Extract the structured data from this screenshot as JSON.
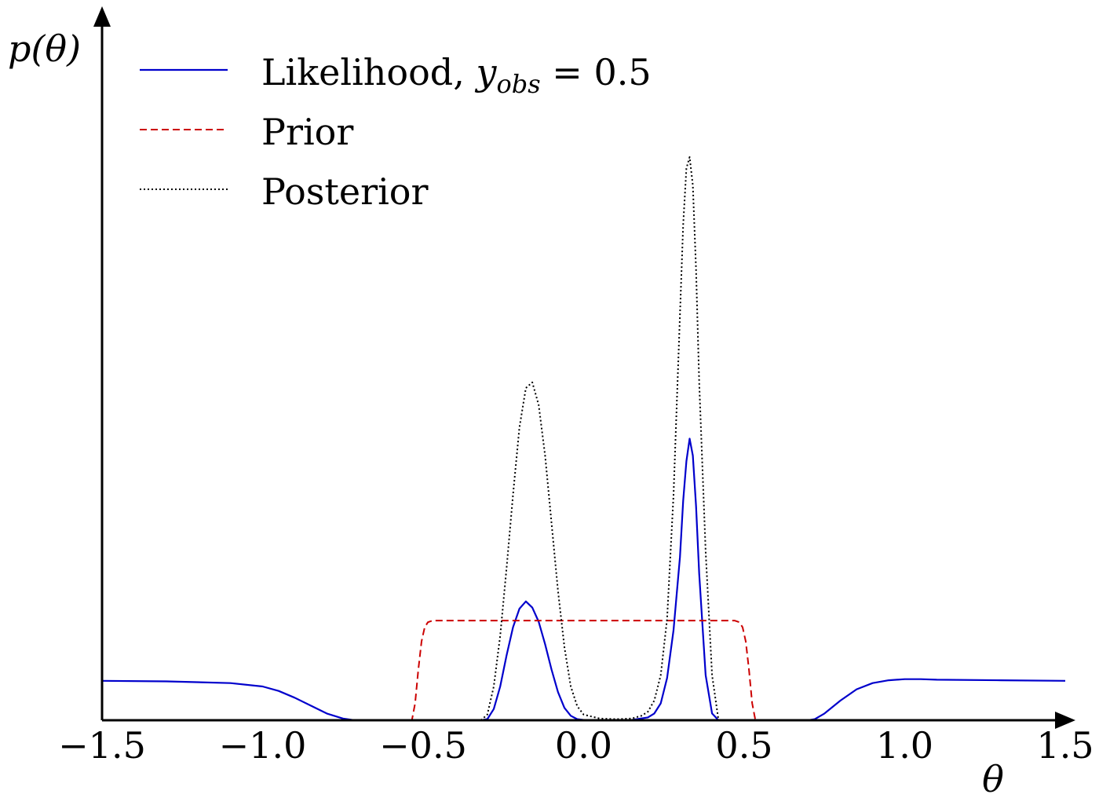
{
  "chart_data": {
    "type": "line",
    "title": "",
    "xlabel": "θ",
    "ylabel": "p(θ)",
    "xlim": [
      -1.5,
      1.5
    ],
    "ylim": [
      0,
      1.0
    ],
    "x_ticks": [
      "−1.5",
      "−1.0",
      "−0.5",
      "0.0",
      "0.5",
      "1.0",
      "1.5"
    ],
    "x_tick_values": [
      -1.5,
      -1.0,
      -0.5,
      0.0,
      0.5,
      1.0,
      1.5
    ],
    "grid": false,
    "legend_position": "top-left",
    "series": [
      {
        "name": "Likelihood, y_obs = 0.5",
        "label_main": "Likelihood, ",
        "label_var": "y",
        "label_sub": "obs",
        "label_rest": " = 0.5",
        "color": "#0000cc",
        "style": "solid",
        "x": [
          -1.5,
          -1.3,
          -1.1,
          -1.0,
          -0.95,
          -0.9,
          -0.85,
          -0.8,
          -0.75,
          -0.72,
          -0.7,
          -0.5,
          -0.32,
          -0.3,
          -0.28,
          -0.26,
          -0.24,
          -0.22,
          -0.2,
          -0.18,
          -0.16,
          -0.14,
          -0.12,
          -0.1,
          -0.08,
          -0.06,
          -0.04,
          -0.02,
          0.0,
          0.02,
          0.05,
          0.1,
          0.15,
          0.2,
          0.22,
          0.24,
          0.26,
          0.28,
          0.3,
          0.31,
          0.32,
          0.33,
          0.34,
          0.35,
          0.36,
          0.38,
          0.4,
          0.42,
          0.5,
          0.7,
          0.72,
          0.75,
          0.8,
          0.85,
          0.9,
          0.95,
          1.0,
          1.05,
          1.1,
          1.3,
          1.5
        ],
        "y": [
          0.07,
          0.069,
          0.066,
          0.06,
          0.052,
          0.04,
          0.026,
          0.012,
          0.003,
          0.0005,
          0.0,
          0.0,
          0.0,
          0.002,
          0.02,
          0.06,
          0.115,
          0.165,
          0.198,
          0.211,
          0.2,
          0.175,
          0.135,
          0.09,
          0.05,
          0.022,
          0.008,
          0.002,
          0.0005,
          0.0,
          0.0,
          0.0,
          0.0005,
          0.005,
          0.012,
          0.03,
          0.075,
          0.16,
          0.29,
          0.39,
          0.46,
          0.5,
          0.47,
          0.38,
          0.26,
          0.08,
          0.012,
          0.0,
          0.0,
          0.0,
          0.002,
          0.012,
          0.035,
          0.055,
          0.066,
          0.071,
          0.073,
          0.073,
          0.072,
          0.071,
          0.07
        ]
      },
      {
        "name": "Prior",
        "color": "#cc0000",
        "style": "dashed",
        "x": [
          -1.5,
          -0.535,
          -0.525,
          -0.515,
          -0.505,
          -0.495,
          -0.485,
          -0.47,
          0.47,
          0.485,
          0.495,
          0.505,
          0.515,
          0.525,
          0.535,
          1.5
        ],
        "y": [
          0.0,
          0.0,
          0.03,
          0.09,
          0.14,
          0.165,
          0.174,
          0.177,
          0.177,
          0.174,
          0.165,
          0.14,
          0.09,
          0.03,
          0.0,
          0.0
        ],
        "x_range": [
          -0.535,
          0.535
        ]
      },
      {
        "name": "Posterior",
        "color": "#000000",
        "style": "dotted",
        "x": [
          -0.32,
          -0.3,
          -0.28,
          -0.26,
          -0.24,
          -0.22,
          -0.2,
          -0.18,
          -0.16,
          -0.14,
          -0.12,
          -0.1,
          -0.08,
          -0.06,
          -0.04,
          -0.02,
          0.0,
          0.05,
          0.1,
          0.15,
          0.18,
          0.2,
          0.22,
          0.24,
          0.26,
          0.28,
          0.3,
          0.31,
          0.32,
          0.33,
          0.34,
          0.35,
          0.36,
          0.38,
          0.4,
          0.42
        ],
        "y": [
          0.0,
          0.01,
          0.06,
          0.15,
          0.27,
          0.4,
          0.52,
          0.59,
          0.6,
          0.56,
          0.47,
          0.35,
          0.23,
          0.13,
          0.06,
          0.025,
          0.01,
          0.003,
          0.002,
          0.003,
          0.008,
          0.015,
          0.035,
          0.08,
          0.18,
          0.4,
          0.72,
          0.88,
          0.98,
          1.0,
          0.95,
          0.8,
          0.6,
          0.3,
          0.08,
          0.0
        ]
      }
    ]
  }
}
